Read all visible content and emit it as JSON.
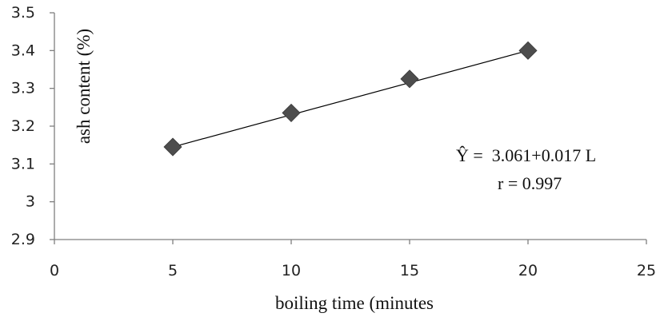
{
  "chart_data": {
    "type": "scatter",
    "xlabel": "boiling time (minutes",
    "ylabel": "ash content (%)",
    "xlim": [
      0,
      25
    ],
    "ylim": [
      2.9,
      3.5
    ],
    "x_ticks": [
      "0",
      "5",
      "10",
      "15",
      "20",
      "25"
    ],
    "y_ticks": [
      "2.9",
      "3",
      "3.1",
      "3.2",
      "3.3",
      "3.4",
      "3.5"
    ],
    "grid": false,
    "legend": "none",
    "marker": "diamond",
    "colors": {
      "marker": "#4d4d4d",
      "trendline": "#000000",
      "axis": "#7f7f7f"
    },
    "points": [
      {
        "x": 5,
        "y": 3.145
      },
      {
        "x": 10,
        "y": 3.235
      },
      {
        "x": 15,
        "y": 3.325
      },
      {
        "x": 20,
        "y": 3.4
      }
    ],
    "trendline": {
      "type": "linear",
      "intercept": 3.061,
      "slope": 0.017
    },
    "annotations": {
      "equation": "Ŷ =  3.061+0.017 L",
      "r": "r = 0.997"
    }
  }
}
